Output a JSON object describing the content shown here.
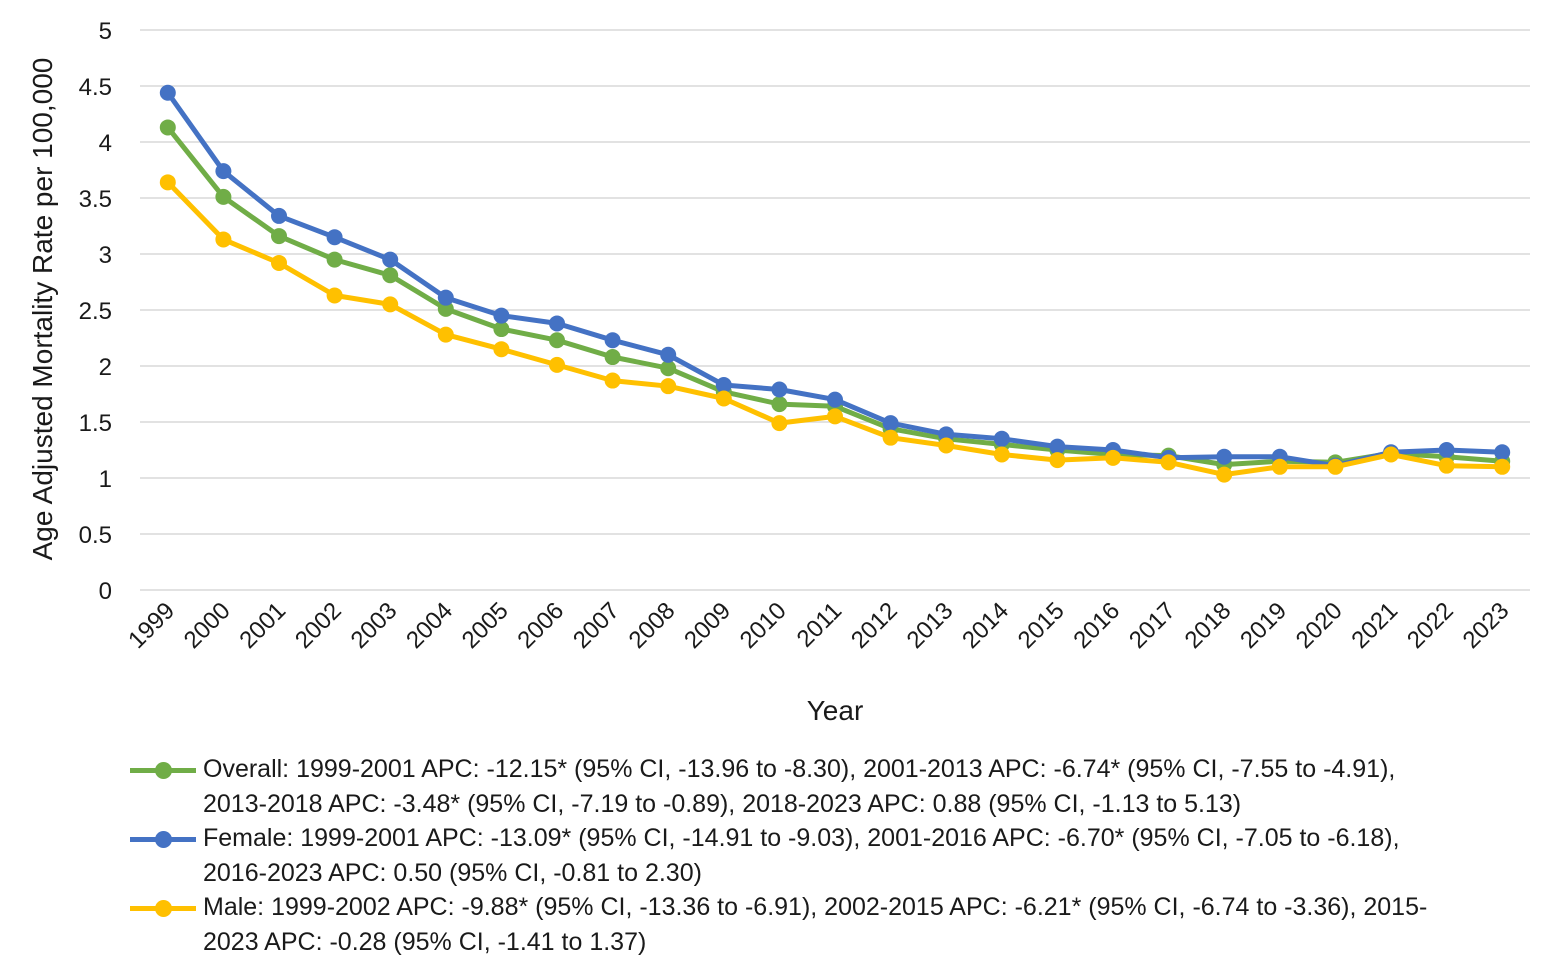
{
  "chart_data": {
    "type": "line",
    "title": "",
    "xlabel": "Year",
    "ylabel": "Age Adjusted Mortality Rate per 100,000",
    "ylim": [
      0,
      5
    ],
    "yticks": [
      "0",
      "0.5",
      "1",
      "1.5",
      "2",
      "2.5",
      "3",
      "3.5",
      "4",
      "4.5",
      "5"
    ],
    "grid": true,
    "legend_position": "bottom",
    "categories": [
      "1999",
      "2000",
      "2001",
      "2002",
      "2003",
      "2004",
      "2005",
      "2006",
      "2007",
      "2008",
      "2009",
      "2010",
      "2011",
      "2012",
      "2013",
      "2014",
      "2015",
      "2016",
      "2017",
      "2018",
      "2019",
      "2020",
      "2021",
      "2022",
      "2023"
    ],
    "series": [
      {
        "name": "Overall",
        "color": "#70AD47",
        "legend_lines": [
          "Overall: 1999-2001 APC: -12.15* (95% CI, -13.96 to -8.30), 2001-2013 APC: -6.74* (95% CI, -7.55 to -4.91),",
          "2013-2018 APC: -3.48* (95% CI, -7.19 to -0.89), 2018-2023 APC: 0.88 (95% CI, -1.13 to 5.13)"
        ],
        "values": [
          4.13,
          3.51,
          3.16,
          2.95,
          2.81,
          2.51,
          2.33,
          2.23,
          2.08,
          1.98,
          1.77,
          1.66,
          1.64,
          1.44,
          1.35,
          1.3,
          1.25,
          1.21,
          1.2,
          1.12,
          1.15,
          1.14,
          1.22,
          1.19,
          1.15
        ]
      },
      {
        "name": "Female",
        "color": "#4472C4",
        "legend_lines": [
          "Female: 1999-2001 APC: -13.09* (95% CI, -14.91 to -9.03), 2001-2016 APC: -6.70* (95% CI, -7.05 to -6.18),",
          "2016-2023 APC: 0.50 (95% CI, -0.81 to 2.30)"
        ],
        "values": [
          4.44,
          3.74,
          3.34,
          3.15,
          2.95,
          2.61,
          2.45,
          2.38,
          2.23,
          2.1,
          1.83,
          1.79,
          1.7,
          1.49,
          1.39,
          1.35,
          1.28,
          1.25,
          1.18,
          1.19,
          1.19,
          1.11,
          1.23,
          1.25,
          1.23
        ]
      },
      {
        "name": "Male",
        "color": "#FFC000",
        "legend_lines": [
          "Male: 1999-2002 APC: -9.88* (95% CI, -13.36 to -6.91), 2002-2015 APC: -6.21* (95% CI, -6.74 to -3.36), 2015-",
          "2023 APC: -0.28 (95% CI, -1.41 to 1.37)"
        ],
        "values": [
          3.64,
          3.13,
          2.92,
          2.63,
          2.55,
          2.28,
          2.15,
          2.01,
          1.87,
          1.82,
          1.71,
          1.49,
          1.55,
          1.36,
          1.29,
          1.21,
          1.16,
          1.18,
          1.14,
          1.03,
          1.1,
          1.1,
          1.21,
          1.11,
          1.1
        ]
      }
    ]
  }
}
